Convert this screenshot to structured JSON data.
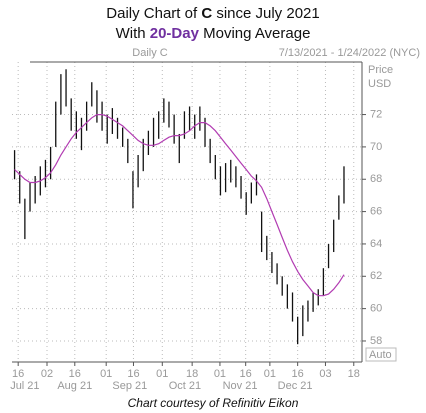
{
  "chart_data": {
    "type": "ohlc",
    "title": [
      "Daily Chart of ",
      "C",
      " since July 2021"
    ],
    "subtitle": [
      "With ",
      "20-Day",
      " Moving Average"
    ],
    "label": "Daily C",
    "date_range": "7/13/2021 - 1/24/2022 (NYC)",
    "y_label": [
      "Price",
      "USD"
    ],
    "scale_mode": "Auto",
    "source": "Chart courtesy of Refinitiv Eikon",
    "xlim": [
      -0.5,
      67.5
    ],
    "ylim": [
      56.7,
      75.25
    ],
    "yticks": [
      58,
      60,
      62,
      64,
      66,
      68,
      70,
      72
    ],
    "xticks": [
      {
        "value": 0.7,
        "label": "16"
      },
      {
        "value": 6.3,
        "label": "02"
      },
      {
        "value": 11.7,
        "label": "16"
      },
      {
        "value": 17.8,
        "label": "01"
      },
      {
        "value": 23.1,
        "label": "16"
      },
      {
        "value": 28.7,
        "label": "01"
      },
      {
        "value": 34.5,
        "label": "18"
      },
      {
        "value": 39.9,
        "label": "01"
      },
      {
        "value": 44.9,
        "label": "16"
      },
      {
        "value": 49.6,
        "label": "01"
      },
      {
        "value": 55.0,
        "label": "16"
      },
      {
        "value": 60.4,
        "label": "03"
      },
      {
        "value": 65.9,
        "label": "18"
      }
    ],
    "month_ticks": [
      {
        "value": 2.0,
        "label": "Jul 21"
      },
      {
        "value": 11.7,
        "label": "Aug 21"
      },
      {
        "value": 22.4,
        "label": "Sep 21"
      },
      {
        "value": 33.1,
        "label": "Oct 21"
      },
      {
        "value": 43.8,
        "label": "Nov 21"
      },
      {
        "value": 54.5,
        "label": "Dec 21"
      }
    ],
    "grid": true,
    "bar_color": "#111111",
    "low": [
      68,
      66.5,
      64.3,
      66,
      66.5,
      67,
      67.5,
      68,
      70,
      72,
      72.5,
      71,
      70.5,
      69.8,
      71,
      72.5,
      71.5,
      71,
      70.2,
      70.8,
      70.5,
      70,
      69,
      66.2,
      67.5,
      68.5,
      69.5,
      70,
      70.5,
      71.5,
      71.2,
      70.2,
      69,
      70.5,
      71,
      70.5,
      71,
      70,
      69,
      68,
      67,
      67.2,
      67.8,
      67.5,
      66.8,
      65.8,
      66.5,
      67,
      63.5,
      63,
      62.2,
      61.5,
      60.8,
      60,
      59.2,
      57.8,
      58.3,
      59.2,
      59.8,
      60.2,
      60.8,
      62.5,
      63.5,
      65.5,
      66.5
    ],
    "high": [
      69.8,
      68.5,
      66.8,
      67.8,
      68.2,
      68.8,
      69.2,
      70,
      72.8,
      74.5,
      74.8,
      73,
      72.2,
      71.8,
      72.8,
      74,
      73.5,
      72.8,
      72,
      72.4,
      71.8,
      71.2,
      70.5,
      68.5,
      69.5,
      70.5,
      71,
      71.8,
      72.2,
      73,
      72.8,
      72,
      70.8,
      72.2,
      72.5,
      72,
      72.5,
      71.8,
      70.5,
      69.5,
      68.8,
      69,
      69.2,
      68.8,
      68.2,
      67.2,
      67.8,
      68.3,
      66,
      64.5,
      63.5,
      62.8,
      62,
      61.5,
      61,
      59.5,
      60.2,
      60.5,
      61,
      61.2,
      62.5,
      64,
      65.5,
      67,
      68.8
    ],
    "series": [
      {
        "name": "20-Day",
        "color": "#b23cb2",
        "values": [
          68.6,
          68.3,
          68.0,
          67.8,
          67.8,
          67.9,
          68.1,
          68.4,
          68.9,
          69.5,
          70.0,
          70.5,
          70.9,
          71.2,
          71.5,
          71.8,
          72.0,
          72.0,
          71.9,
          71.7,
          71.5,
          71.3,
          71.0,
          70.7,
          70.4,
          70.2,
          70.1,
          70.1,
          70.2,
          70.4,
          70.6,
          70.7,
          70.7,
          70.8,
          71.0,
          71.3,
          71.5,
          71.5,
          71.3,
          71.0,
          70.6,
          70.2,
          69.8,
          69.4,
          69.0,
          68.6,
          68.2,
          67.9,
          67.5,
          66.8,
          66.0,
          65.2,
          64.4,
          63.6,
          62.9,
          62.3,
          61.8,
          61.4,
          61.0,
          60.8,
          60.8,
          60.9,
          61.2,
          61.6,
          62.1
        ]
      }
    ]
  }
}
